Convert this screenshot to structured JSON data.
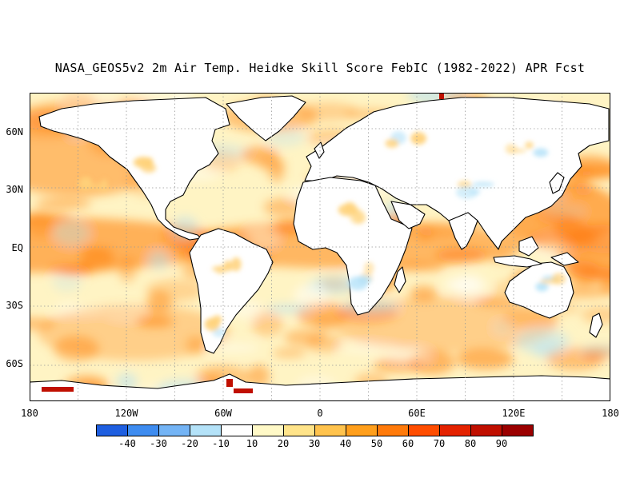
{
  "title": "NASA_GEOS5v2 2m Air Temp. Heidke Skill Score FebIC (1982-2022) APR Fcst",
  "lat_axis": [
    "60N",
    "30N",
    "EQ",
    "30S",
    "60S"
  ],
  "lon_axis": [
    "180",
    "120W",
    "60W",
    "0",
    "60E",
    "120E",
    "180"
  ],
  "colorbar": {
    "colors": [
      "#1f5fe0",
      "#3e8cf0",
      "#74b4f5",
      "#b4e2f8",
      "#ffffff",
      "#fff9c7",
      "#ffe48a",
      "#ffc34d",
      "#ff9f1c",
      "#ff7a0a",
      "#ff4d00",
      "#e42200",
      "#c00f00",
      "#9b0000"
    ],
    "labels": [
      "-40",
      "-30",
      "-20",
      "-10",
      "10",
      "20",
      "30",
      "40",
      "50",
      "60",
      "70",
      "80",
      "90"
    ]
  },
  "palette": {
    "coast": "#000000",
    "ocean_base": "#fff4c4",
    "land_base": "#ffffff",
    "high_skill": "#ff7a0a",
    "negative_skill": "#b4e2f8",
    "very_high_skill": "#c00f00"
  }
}
